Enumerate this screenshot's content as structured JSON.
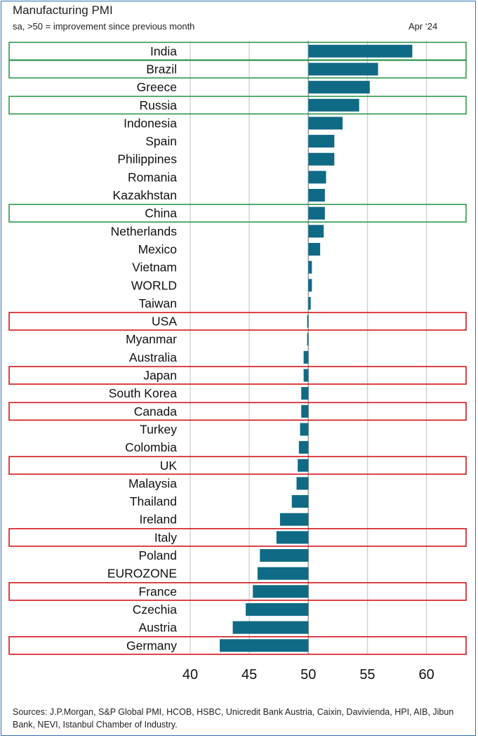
{
  "title": "Manufacturing PMI",
  "subtitle": "sa, >50 = improvement since previous month",
  "date_label": "Apr ‘24",
  "source": "Sources: J.P.Morgan, S&P Global PMI, HCOB, HSBC, Unicredit Bank Austria, Caixin, Davivienda, HPI, AIB, Jibun Bank, NEVI, Istanbul Chamber of Industry.",
  "colors": {
    "bar": "#0f6a85",
    "green_box": "#2e9a4e",
    "red_box": "#d0161b",
    "grid": "#d3d3d3",
    "baseline": "#9a9a9a"
  },
  "chart_data": {
    "type": "bar",
    "orientation": "horizontal",
    "title": "Manufacturing PMI",
    "baseline": 50,
    "xlim": [
      40,
      62.5
    ],
    "ticks": [
      40,
      45,
      50,
      55,
      60
    ],
    "categories": [
      "India",
      "Brazil",
      "Greece",
      "Russia",
      "Indonesia",
      "Spain",
      "Philippines",
      "Romania",
      "Kazakhstan",
      "China",
      "Netherlands",
      "Mexico",
      "Vietnam",
      "WORLD",
      "Taiwan",
      "USA",
      "Myanmar",
      "Australia",
      "Japan",
      "South Korea",
      "Canada",
      "Turkey",
      "Colombia",
      "UK",
      "Malaysia",
      "Thailand",
      "Ireland",
      "Italy",
      "Poland",
      "EUROZONE",
      "France",
      "Czechia",
      "Austria",
      "Germany"
    ],
    "values": [
      58.8,
      55.9,
      55.2,
      54.3,
      52.9,
      52.2,
      52.2,
      51.5,
      51.4,
      51.4,
      51.3,
      51.0,
      50.3,
      50.3,
      50.2,
      49.9,
      49.9,
      49.6,
      49.6,
      49.4,
      49.4,
      49.3,
      49.2,
      49.1,
      49.0,
      48.6,
      47.6,
      47.3,
      45.9,
      45.7,
      45.3,
      44.7,
      43.6,
      42.5
    ],
    "highlight_green": [
      "India",
      "Brazil",
      "Russia",
      "China"
    ],
    "highlight_red": [
      "USA",
      "Japan",
      "Canada",
      "UK",
      "Italy",
      "France",
      "Germany"
    ]
  }
}
